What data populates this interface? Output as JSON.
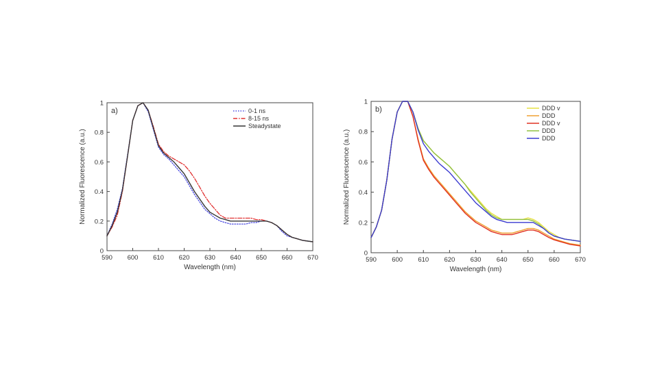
{
  "chart_data": [
    {
      "type": "line",
      "panel_label": "a)",
      "xlabel": "Wavelength (nm)",
      "ylabel": "Normalized Fluorescence (a.u.)",
      "xlim": [
        590,
        670
      ],
      "ylim": [
        0,
        1
      ],
      "xticks": [
        590,
        600,
        610,
        620,
        630,
        640,
        650,
        660,
        670
      ],
      "xtick_labels": [
        "590",
        "600",
        "610",
        "620",
        "630",
        "640",
        "650",
        "660",
        "670"
      ],
      "yticks": [
        0,
        0.2,
        0.4,
        0.6,
        0.8,
        1
      ],
      "ytick_labels": [
        "0",
        "0.2",
        "0.4",
        "0.6",
        "0.8",
        "1"
      ],
      "legend_position": "top-right",
      "series": [
        {
          "name": "0-1 ns",
          "color": "#4a4ae0",
          "style": "dotted",
          "x": [
            590,
            592,
            594,
            596,
            598,
            600,
            602,
            604,
            606,
            608,
            610,
            612,
            614,
            616,
            618,
            620,
            622,
            624,
            626,
            628,
            630,
            632,
            634,
            636,
            638,
            640,
            642,
            644,
            646,
            648,
            650,
            652,
            654,
            656,
            658,
            660,
            662,
            664,
            666,
            668,
            670
          ],
          "values": [
            0.1,
            0.18,
            0.28,
            0.42,
            0.65,
            0.88,
            0.98,
            1.0,
            0.94,
            0.82,
            0.7,
            0.65,
            0.62,
            0.58,
            0.54,
            0.5,
            0.44,
            0.38,
            0.33,
            0.28,
            0.25,
            0.22,
            0.2,
            0.19,
            0.18,
            0.18,
            0.18,
            0.18,
            0.19,
            0.19,
            0.2,
            0.2,
            0.19,
            0.17,
            0.13,
            0.1,
            0.09,
            0.08,
            0.07,
            0.065,
            0.06
          ]
        },
        {
          "name": "8-15 ns",
          "color": "#e03030",
          "style": "dashdot",
          "x": [
            590,
            592,
            594,
            596,
            598,
            600,
            602,
            604,
            606,
            608,
            610,
            612,
            614,
            616,
            618,
            620,
            622,
            624,
            626,
            628,
            630,
            632,
            634,
            636,
            638,
            640,
            642,
            644,
            646,
            648,
            650,
            652,
            654,
            656,
            658,
            660,
            662,
            664,
            666,
            668,
            670
          ],
          "values": [
            0.1,
            0.16,
            0.24,
            0.4,
            0.64,
            0.88,
            0.98,
            1.0,
            0.95,
            0.84,
            0.72,
            0.67,
            0.64,
            0.62,
            0.6,
            0.58,
            0.54,
            0.49,
            0.43,
            0.37,
            0.32,
            0.28,
            0.24,
            0.22,
            0.22,
            0.22,
            0.22,
            0.22,
            0.22,
            0.21,
            0.21,
            0.2,
            0.19,
            0.17,
            0.14,
            0.11,
            0.09,
            0.08,
            0.07,
            0.065,
            0.06
          ]
        },
        {
          "name": "Steadystate",
          "color": "#333333",
          "style": "solid",
          "x": [
            590,
            592,
            594,
            596,
            598,
            600,
            602,
            604,
            606,
            608,
            610,
            612,
            614,
            616,
            618,
            620,
            622,
            624,
            626,
            628,
            630,
            632,
            634,
            636,
            638,
            640,
            642,
            644,
            646,
            648,
            650,
            652,
            654,
            656,
            658,
            660,
            662,
            664,
            666,
            668,
            670
          ],
          "values": [
            0.1,
            0.17,
            0.26,
            0.41,
            0.64,
            0.88,
            0.98,
            1.0,
            0.95,
            0.83,
            0.71,
            0.66,
            0.63,
            0.6,
            0.56,
            0.52,
            0.46,
            0.4,
            0.35,
            0.3,
            0.26,
            0.24,
            0.22,
            0.21,
            0.2,
            0.2,
            0.2,
            0.2,
            0.2,
            0.2,
            0.2,
            0.2,
            0.19,
            0.17,
            0.14,
            0.11,
            0.09,
            0.08,
            0.07,
            0.065,
            0.06
          ]
        }
      ]
    },
    {
      "type": "line",
      "panel_label": "b)",
      "xlabel": "Wavelength (nm)",
      "ylabel": "Normalized Fluorescence (a.u.)",
      "xlim": [
        590,
        670
      ],
      "ylim": [
        0,
        1
      ],
      "xticks": [
        590,
        600,
        610,
        620,
        630,
        640,
        650,
        660,
        670
      ],
      "xtick_labels": [
        "590",
        "600",
        "610",
        "620",
        "630",
        "640",
        "650",
        "660",
        "670"
      ],
      "yticks": [
        0,
        0.2,
        0.4,
        0.6,
        0.8,
        1
      ],
      "ytick_labels": [
        "0",
        "0.2",
        "0.4",
        "0.6",
        "0.8",
        "1"
      ],
      "legend_position": "top-right",
      "series": [
        {
          "name": "DDD v",
          "color": "#e6e040",
          "style": "solid",
          "x": [
            590,
            592,
            594,
            596,
            598,
            600,
            602,
            604,
            606,
            608,
            610,
            612,
            614,
            616,
            618,
            620,
            622,
            624,
            626,
            628,
            630,
            632,
            634,
            636,
            638,
            640,
            642,
            644,
            646,
            648,
            650,
            652,
            654,
            656,
            658,
            660,
            662,
            664,
            666,
            668,
            670
          ],
          "values": [
            0.1,
            0.17,
            0.28,
            0.48,
            0.75,
            0.93,
            1.0,
            1.0,
            0.93,
            0.82,
            0.74,
            0.7,
            0.66,
            0.63,
            0.6,
            0.57,
            0.53,
            0.49,
            0.45,
            0.41,
            0.37,
            0.33,
            0.29,
            0.26,
            0.24,
            0.22,
            0.22,
            0.22,
            0.22,
            0.22,
            0.23,
            0.22,
            0.2,
            0.17,
            0.14,
            0.12,
            0.1,
            0.09,
            0.085,
            0.08,
            0.075
          ]
        },
        {
          "name": "DDD",
          "color": "#f0a030",
          "style": "solid",
          "x": [
            590,
            592,
            594,
            596,
            598,
            600,
            602,
            604,
            606,
            608,
            610,
            612,
            614,
            616,
            618,
            620,
            622,
            624,
            626,
            628,
            630,
            632,
            634,
            636,
            638,
            640,
            642,
            644,
            646,
            648,
            650,
            652,
            654,
            656,
            658,
            660,
            662,
            664,
            666,
            668,
            670
          ],
          "values": [
            0.1,
            0.17,
            0.28,
            0.48,
            0.75,
            0.93,
            1.0,
            1.0,
            0.9,
            0.75,
            0.62,
            0.56,
            0.51,
            0.47,
            0.43,
            0.39,
            0.35,
            0.31,
            0.27,
            0.24,
            0.21,
            0.19,
            0.17,
            0.15,
            0.14,
            0.13,
            0.13,
            0.13,
            0.14,
            0.15,
            0.16,
            0.16,
            0.15,
            0.13,
            0.11,
            0.09,
            0.08,
            0.07,
            0.06,
            0.055,
            0.05
          ]
        },
        {
          "name": "DDD v",
          "color": "#e03020",
          "style": "solid",
          "x": [
            590,
            592,
            594,
            596,
            598,
            600,
            602,
            604,
            606,
            608,
            610,
            612,
            614,
            616,
            618,
            620,
            622,
            624,
            626,
            628,
            630,
            632,
            634,
            636,
            638,
            640,
            642,
            644,
            646,
            648,
            650,
            652,
            654,
            656,
            658,
            660,
            662,
            664,
            666,
            668,
            670
          ],
          "values": [
            0.1,
            0.17,
            0.28,
            0.48,
            0.75,
            0.93,
            1.0,
            1.0,
            0.9,
            0.74,
            0.61,
            0.55,
            0.5,
            0.46,
            0.42,
            0.38,
            0.34,
            0.3,
            0.26,
            0.23,
            0.2,
            0.18,
            0.16,
            0.14,
            0.13,
            0.12,
            0.12,
            0.12,
            0.13,
            0.14,
            0.15,
            0.15,
            0.14,
            0.12,
            0.1,
            0.085,
            0.075,
            0.065,
            0.055,
            0.05,
            0.045
          ]
        },
        {
          "name": "DDD",
          "color": "#90c040",
          "style": "solid",
          "x": [
            590,
            592,
            594,
            596,
            598,
            600,
            602,
            604,
            606,
            608,
            610,
            612,
            614,
            616,
            618,
            620,
            622,
            624,
            626,
            628,
            630,
            632,
            634,
            636,
            638,
            640,
            642,
            644,
            646,
            648,
            650,
            652,
            654,
            656,
            658,
            660,
            662,
            664,
            666,
            668,
            670
          ],
          "values": [
            0.1,
            0.17,
            0.28,
            0.48,
            0.75,
            0.93,
            1.0,
            1.0,
            0.93,
            0.82,
            0.74,
            0.7,
            0.66,
            0.63,
            0.6,
            0.57,
            0.53,
            0.49,
            0.45,
            0.4,
            0.36,
            0.32,
            0.28,
            0.25,
            0.23,
            0.22,
            0.22,
            0.22,
            0.22,
            0.22,
            0.22,
            0.21,
            0.19,
            0.16,
            0.13,
            0.11,
            0.1,
            0.09,
            0.085,
            0.08,
            0.075
          ]
        },
        {
          "name": "DDD",
          "color": "#3a3ad0",
          "style": "solid",
          "x": [
            590,
            592,
            594,
            596,
            598,
            600,
            602,
            604,
            606,
            608,
            610,
            612,
            614,
            616,
            618,
            620,
            622,
            624,
            626,
            628,
            630,
            632,
            634,
            636,
            638,
            640,
            642,
            644,
            646,
            648,
            650,
            652,
            654,
            656,
            658,
            660,
            662,
            664,
            666,
            668,
            670
          ],
          "values": [
            0.1,
            0.17,
            0.28,
            0.48,
            0.75,
            0.93,
            1.0,
            1.0,
            0.93,
            0.81,
            0.72,
            0.67,
            0.63,
            0.59,
            0.56,
            0.53,
            0.49,
            0.45,
            0.41,
            0.37,
            0.33,
            0.3,
            0.27,
            0.24,
            0.22,
            0.21,
            0.2,
            0.2,
            0.2,
            0.2,
            0.2,
            0.2,
            0.18,
            0.16,
            0.13,
            0.11,
            0.1,
            0.09,
            0.085,
            0.08,
            0.075
          ]
        }
      ]
    }
  ]
}
